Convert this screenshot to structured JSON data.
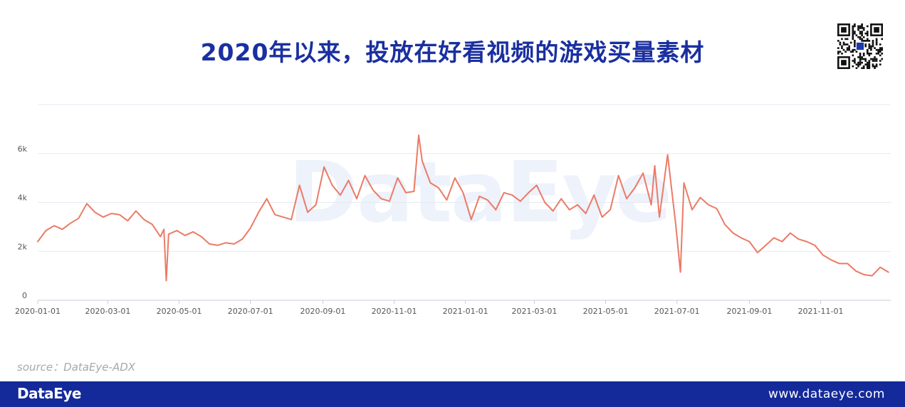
{
  "title": "2020年以来，投放在好看视频的游戏买量素材",
  "source": "source：DataEye-ADX",
  "footer": {
    "brand": "DataEye",
    "url": "www.dataeye.com"
  },
  "watermark": "DataEye",
  "colors": {
    "title": "#1a2fa0",
    "line": "#ec7a66",
    "footer": "#142a9a",
    "grid": "#e6e9f0"
  },
  "chart_data": {
    "type": "line",
    "title": "",
    "xlabel": "",
    "ylabel": "",
    "ylim": [
      0,
      8000
    ],
    "yticks": [
      {
        "value": 0,
        "label": "0"
      },
      {
        "value": 2000,
        "label": "2k"
      },
      {
        "value": 4000,
        "label": "4k"
      },
      {
        "value": 6000,
        "label": "6k"
      }
    ],
    "xticks": [
      "2020-01-01",
      "2020-03-01",
      "2020-05-01",
      "2020-07-01",
      "2020-09-01",
      "2020-11-01",
      "2021-01-01",
      "2021-03-01",
      "2021-05-01",
      "2021-07-01",
      "2021-09-01",
      "2021-11-01"
    ],
    "grid": true,
    "legend": "none",
    "series": [
      {
        "x": [
          "2020-01-01",
          "2020-01-08",
          "2020-01-15",
          "2020-01-22",
          "2020-01-29",
          "2020-02-05",
          "2020-02-12",
          "2020-02-19",
          "2020-02-26",
          "2020-03-04",
          "2020-03-11",
          "2020-03-18",
          "2020-03-25",
          "2020-04-01",
          "2020-04-08",
          "2020-04-15",
          "2020-04-18",
          "2020-04-20",
          "2020-04-22",
          "2020-04-29",
          "2020-05-06",
          "2020-05-13",
          "2020-05-20",
          "2020-05-27",
          "2020-06-03",
          "2020-06-10",
          "2020-06-17",
          "2020-06-24",
          "2020-07-01",
          "2020-07-08",
          "2020-07-15",
          "2020-07-22",
          "2020-07-29",
          "2020-08-05",
          "2020-08-12",
          "2020-08-19",
          "2020-08-26",
          "2020-09-02",
          "2020-09-09",
          "2020-09-16",
          "2020-09-23",
          "2020-09-30",
          "2020-10-07",
          "2020-10-14",
          "2020-10-21",
          "2020-10-28",
          "2020-11-04",
          "2020-11-11",
          "2020-11-18",
          "2020-11-22",
          "2020-11-25",
          "2020-12-02",
          "2020-12-09",
          "2020-12-16",
          "2020-12-23",
          "2020-12-30",
          "2021-01-06",
          "2021-01-13",
          "2021-01-20",
          "2021-01-27",
          "2021-02-03",
          "2021-02-10",
          "2021-02-17",
          "2021-02-24",
          "2021-03-03",
          "2021-03-10",
          "2021-03-17",
          "2021-03-24",
          "2021-03-31",
          "2021-04-07",
          "2021-04-14",
          "2021-04-21",
          "2021-04-28",
          "2021-05-05",
          "2021-05-12",
          "2021-05-19",
          "2021-05-26",
          "2021-06-02",
          "2021-06-09",
          "2021-06-12",
          "2021-06-16",
          "2021-06-23",
          "2021-06-30",
          "2021-07-04",
          "2021-07-07",
          "2021-07-14",
          "2021-07-21",
          "2021-07-28",
          "2021-08-04",
          "2021-08-11",
          "2021-08-18",
          "2021-08-25",
          "2021-09-01",
          "2021-09-08",
          "2021-09-15",
          "2021-09-22",
          "2021-09-29",
          "2021-10-06",
          "2021-10-13",
          "2021-10-20",
          "2021-10-27",
          "2021-11-03",
          "2021-11-10",
          "2021-11-17",
          "2021-11-24",
          "2021-12-01",
          "2021-12-08",
          "2021-12-15",
          "2021-12-22",
          "2021-12-29"
        ],
        "values": [
          2400,
          2850,
          3050,
          2900,
          3150,
          3350,
          3950,
          3600,
          3400,
          3550,
          3500,
          3250,
          3650,
          3300,
          3100,
          2600,
          2900,
          800,
          2700,
          2850,
          2650,
          2800,
          2600,
          2300,
          2250,
          2350,
          2300,
          2500,
          2950,
          3600,
          4150,
          3500,
          3400,
          3300,
          4700,
          3600,
          3900,
          5450,
          4700,
          4300,
          4900,
          4150,
          5100,
          4500,
          4150,
          4050,
          5000,
          4400,
          4450,
          6750,
          5700,
          4800,
          4600,
          4100,
          5000,
          4400,
          3300,
          4250,
          4100,
          3700,
          4400,
          4300,
          4050,
          4400,
          4700,
          4000,
          3650,
          4150,
          3700,
          3900,
          3550,
          4300,
          3400,
          3700,
          5100,
          4150,
          4600,
          5200,
          3900,
          5500,
          3400,
          5950,
          3100,
          1150,
          4800,
          3700,
          4200,
          3900,
          3750,
          3100,
          2750,
          2550,
          2400,
          1950,
          2250,
          2550,
          2400,
          2750,
          2500,
          2400,
          2250,
          1850,
          1650,
          1500,
          1500,
          1200,
          1050,
          1000,
          1350,
          1150
        ]
      }
    ]
  }
}
